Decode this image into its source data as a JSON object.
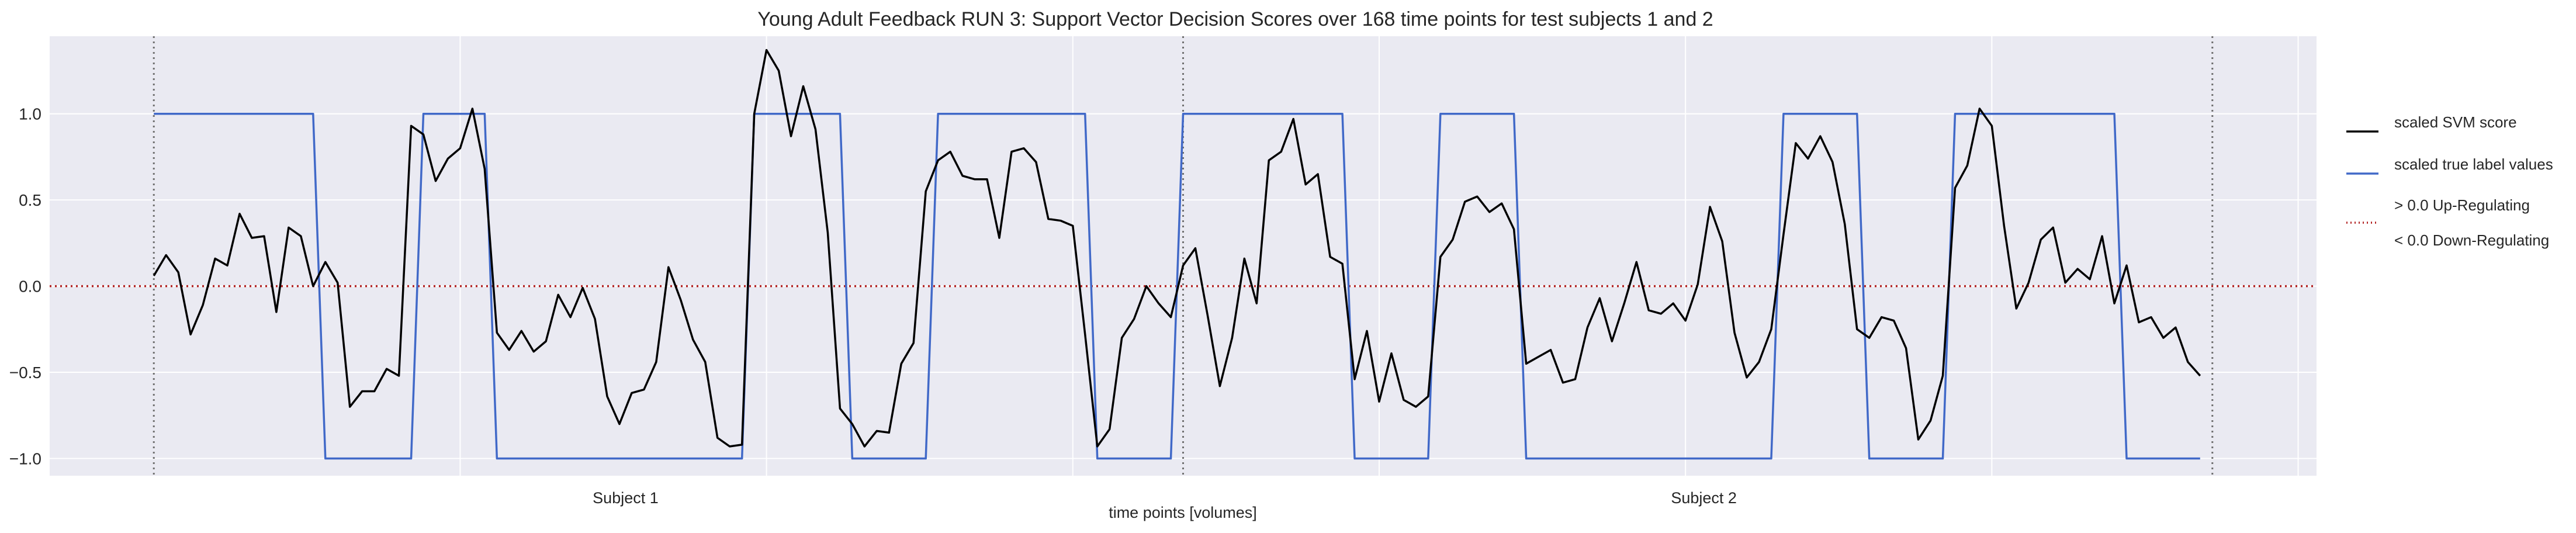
{
  "chart_data": {
    "type": "line",
    "title": "Young Adult Feedback RUN 3: Support Vector Decision Scores over 168 time points for test subjects 1 and 2",
    "xlabel": "time points [volumes]",
    "ylabel": "",
    "ylim": [
      -1.1,
      1.45
    ],
    "xlim": [
      -8.5,
      176.5
    ],
    "yticks": [
      1.0,
      0.5,
      0.0,
      -0.5,
      -1.0
    ],
    "ytick_labels": [
      "1.0",
      "0.5",
      "0.0",
      "−0.5",
      "−1.0"
    ],
    "x_gridlines": [
      25,
      50,
      75,
      100,
      125,
      150,
      175
    ],
    "grid": true,
    "background_color": "#eaeaf2",
    "subject_boundaries": [
      0,
      84,
      168
    ],
    "group_labels": [
      {
        "label": "Subject 1",
        "x": 38.5
      },
      {
        "label": "Subject 2",
        "x": 126.5
      }
    ],
    "legend": {
      "placement": "right",
      "entries": [
        {
          "label": "scaled SVM score",
          "style": "solid",
          "color": "#000000"
        },
        {
          "label": "scaled true label values",
          "style": "solid",
          "color": "#4169c8"
        },
        {
          "label": "> 0.0 Up-Regulating",
          "label2": "< 0.0 Down-Regulating",
          "style": "dotted",
          "color": "#b22222"
        }
      ]
    },
    "series": [
      {
        "name": "scaled SVM score",
        "color": "#000000",
        "x": [
          0,
          1,
          2,
          3,
          4,
          5,
          6,
          7,
          8,
          9,
          10,
          11,
          12,
          13,
          14,
          15,
          16,
          17,
          18,
          19,
          20,
          21,
          22,
          23,
          24,
          25,
          26,
          27,
          28,
          29,
          30,
          31,
          32,
          33,
          34,
          35,
          36,
          37,
          38,
          39,
          40,
          41,
          42,
          43,
          44,
          45,
          46,
          47,
          48,
          49,
          50,
          51,
          52,
          53,
          54,
          55,
          56,
          57,
          58,
          59,
          60,
          61,
          62,
          63,
          64,
          65,
          66,
          67,
          68,
          69,
          70,
          71,
          72,
          73,
          74,
          75,
          76,
          77,
          78,
          79,
          80,
          81,
          82,
          83,
          84,
          85,
          86,
          87,
          88,
          89,
          90,
          91,
          92,
          93,
          94,
          95,
          96,
          97,
          98,
          99,
          100,
          101,
          102,
          103,
          104,
          105,
          106,
          107,
          108,
          109,
          110,
          111,
          112,
          113,
          114,
          115,
          116,
          117,
          118,
          119,
          120,
          121,
          122,
          123,
          124,
          125,
          126,
          127,
          128,
          129,
          130,
          131,
          132,
          133,
          134,
          135,
          136,
          137,
          138,
          139,
          140,
          141,
          142,
          143,
          144,
          145,
          146,
          147,
          148,
          149,
          150,
          151,
          152,
          153,
          154,
          155,
          156,
          157,
          158,
          159,
          160,
          161,
          162,
          163,
          164,
          165,
          166,
          167
        ],
        "values": [
          0.06,
          0.18,
          0.08,
          -0.28,
          -0.11,
          0.16,
          0.12,
          0.42,
          0.28,
          0.29,
          -0.15,
          0.34,
          0.29,
          0.0,
          0.14,
          0.02,
          -0.7,
          -0.61,
          -0.61,
          -0.48,
          -0.52,
          0.93,
          0.88,
          0.61,
          0.74,
          0.8,
          1.03,
          0.68,
          -0.27,
          -0.37,
          -0.26,
          -0.38,
          -0.32,
          -0.05,
          -0.18,
          -0.01,
          -0.19,
          -0.64,
          -0.8,
          -0.62,
          -0.6,
          -0.44,
          0.11,
          -0.08,
          -0.31,
          -0.44,
          -0.88,
          -0.93,
          -0.92,
          1.0,
          1.37,
          1.25,
          0.87,
          1.16,
          0.91,
          0.31,
          -0.71,
          -0.8,
          -0.93,
          -0.84,
          -0.85,
          -0.45,
          -0.33,
          0.55,
          0.73,
          0.78,
          0.64,
          0.62,
          0.62,
          0.28,
          0.78,
          0.8,
          0.72,
          0.39,
          0.38,
          0.35,
          -0.28,
          -0.93,
          -0.83,
          -0.3,
          -0.19,
          0.0,
          -0.1,
          -0.18,
          0.12,
          0.22,
          -0.17,
          -0.58,
          -0.3,
          0.16,
          -0.1,
          0.73,
          0.78,
          0.97,
          0.59,
          0.65,
          0.17,
          0.13,
          -0.54,
          -0.26,
          -0.67,
          -0.39,
          -0.66,
          -0.7,
          -0.64,
          0.17,
          0.27,
          0.49,
          0.52,
          0.43,
          0.48,
          0.33,
          -0.45,
          -0.41,
          -0.37,
          -0.56,
          -0.54,
          -0.24,
          -0.07,
          -0.32,
          -0.1,
          0.14,
          -0.14,
          -0.16,
          -0.1,
          -0.2,
          0.01,
          0.46,
          0.26,
          -0.27,
          -0.53,
          -0.44,
          -0.25,
          0.3,
          0.83,
          0.74,
          0.87,
          0.72,
          0.36,
          -0.25,
          -0.3,
          -0.18,
          -0.2,
          -0.36,
          -0.89,
          -0.78,
          -0.52,
          0.57,
          0.7,
          1.03,
          0.93,
          0.35,
          -0.13,
          0.02,
          0.27,
          0.34,
          0.02,
          0.1,
          0.04,
          0.29,
          -0.1,
          0.12,
          -0.21,
          -0.18,
          -0.3,
          -0.24,
          -0.44,
          -0.52
        ]
      },
      {
        "name": "scaled true label values",
        "color": "#4169c8",
        "x": [
          0,
          13,
          14,
          21,
          22,
          27,
          28,
          48,
          49,
          56,
          57,
          63,
          64,
          76,
          77,
          83,
          84,
          97,
          98,
          104,
          105,
          111,
          112,
          132,
          133,
          139,
          140,
          146,
          147,
          160,
          161,
          167
        ],
        "values": [
          1,
          1,
          -1,
          -1,
          1,
          1,
          -1,
          -1,
          1,
          1,
          -1,
          -1,
          1,
          1,
          -1,
          -1,
          1,
          1,
          -1,
          -1,
          1,
          1,
          -1,
          -1,
          1,
          1,
          -1,
          -1,
          1,
          1,
          -1,
          -1
        ]
      }
    ],
    "threshold": {
      "y": 0.0,
      "color": "#b22222",
      "style": "dotted"
    }
  }
}
